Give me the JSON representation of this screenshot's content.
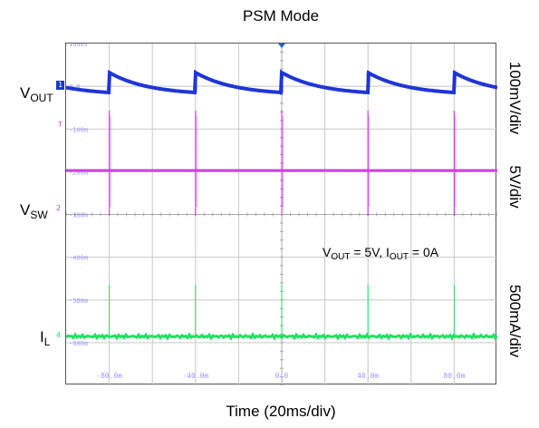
{
  "chart_data": {
    "type": "line",
    "title": "PSM Mode",
    "xlabel": "Time (20ms/div)",
    "x_ticks": [
      "-80.0m",
      "-40.0m",
      "0.0",
      "40.0m",
      "80.0m"
    ],
    "y_ticks": [
      "100mV",
      "0.0",
      "-100m",
      "-200m",
      "-300m",
      "-400m",
      "-500m",
      "-600m"
    ],
    "grid": true,
    "xlim": [
      -100,
      100
    ],
    "burst_times": [
      -80,
      -40,
      0,
      40,
      80
    ],
    "series": [
      {
        "name": "V_OUT",
        "scale": "100mV/div",
        "color": "#1f35d6",
        "shape": "ripple",
        "ripple_mV": 90
      },
      {
        "name": "V_SW",
        "scale": "5V/div",
        "color": "#d040e0",
        "shape": "pulses"
      },
      {
        "name": "I_L",
        "scale": "500mA/div",
        "color": "#22e060",
        "shape": "spikes"
      }
    ],
    "annotation": {
      "vout": "V",
      "vout_sub": "OUT",
      "vout_val": " = 5V, ",
      "iout": "I",
      "iout_sub": "OUT",
      "iout_val": " = 0A"
    }
  },
  "labels": {
    "vout_main": "V",
    "vout_sub": "OUT",
    "vsw_main": "V",
    "vsw_sub": "SW",
    "il_main": "I",
    "il_sub": "L",
    "scale_vout": "100mV/div",
    "scale_vsw": "5V/div",
    "scale_il": "500mA/div"
  },
  "markers": {
    "ch1": "1",
    "trig": "T",
    "ch2": "2",
    "ch4": "4"
  },
  "colors": {
    "ch1": "#1f35d6",
    "ch2": "#d040e0",
    "ch4": "#22e060",
    "trigger": "#1f60d0",
    "grid": "#c8c8c8"
  }
}
